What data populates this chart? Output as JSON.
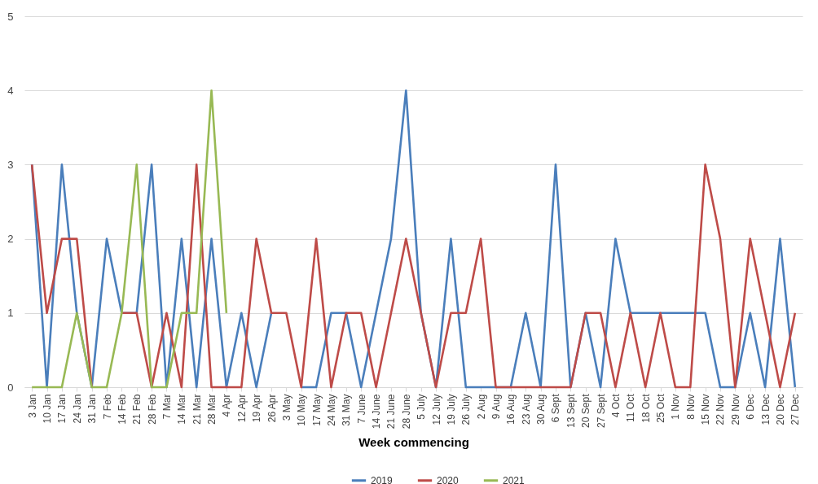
{
  "chart_data": {
    "type": "line",
    "xlabel": "Week commencing",
    "categories": [
      "3 Jan",
      "10 Jan",
      "17 Jan",
      "24 Jan",
      "31 Jan",
      "7 Feb",
      "14 Feb",
      "21 Feb",
      "28 Feb",
      "7 Mar",
      "14 Mar",
      "21 Mar",
      "28 Mar",
      "4 Apr",
      "12 Apr",
      "19 Apr",
      "26 Apr",
      "3 May",
      "10 May",
      "17 May",
      "24 May",
      "31 May",
      "7 June",
      "14 June",
      "21 June",
      "28 June",
      "5 July",
      "12 July",
      "19 July",
      "26 July",
      "2 Aug",
      "9 Aug",
      "16 Aug",
      "23 Aug",
      "30 Aug",
      "6 Sept",
      "13 Sept",
      "20 Sept",
      "27 Sept",
      "4 Oct",
      "11 Oct",
      "18 Oct",
      "25 Oct",
      "1 Nov",
      "8 Nov",
      "15 Nov",
      "22 Nov",
      "29 Nov",
      "6 Dec",
      "13 Dec",
      "20 Dec",
      "27 Dec"
    ],
    "series": [
      {
        "name": "2019",
        "color": "#4a7ebb",
        "values": [
          3,
          0,
          3,
          1,
          0,
          2,
          1,
          1,
          3,
          0,
          2,
          0,
          2,
          0,
          1,
          0,
          1,
          null,
          0,
          0,
          1,
          1,
          0,
          1,
          2,
          4,
          1,
          0,
          2,
          0,
          0,
          0,
          0,
          1,
          0,
          3,
          0,
          1,
          0,
          2,
          1,
          1,
          1,
          1,
          1,
          1,
          0,
          0,
          1,
          0,
          2,
          0
        ]
      },
      {
        "name": "2020",
        "color": "#be4b48",
        "values": [
          3,
          1,
          2,
          2,
          0,
          null,
          1,
          1,
          0,
          1,
          0,
          3,
          0,
          0,
          0,
          2,
          1,
          1,
          0,
          2,
          0,
          1,
          1,
          0,
          1,
          2,
          1,
          0,
          1,
          1,
          2,
          0,
          0,
          0,
          0,
          0,
          0,
          1,
          1,
          0,
          1,
          0,
          1,
          0,
          0,
          3,
          2,
          0,
          2,
          1,
          0,
          1
        ]
      },
      {
        "name": "2021",
        "color": "#98b954",
        "values": [
          0,
          0,
          0,
          1,
          0,
          0,
          1,
          3,
          0,
          0,
          1,
          1,
          4,
          1,
          null,
          null,
          null,
          null,
          null,
          null,
          null,
          null,
          null,
          null,
          null,
          null,
          null,
          null,
          null,
          null,
          null,
          null,
          null,
          null,
          null,
          null,
          null,
          null,
          null,
          null,
          null,
          null,
          null,
          null,
          null,
          null,
          null,
          null,
          null,
          null,
          null,
          null
        ]
      }
    ],
    "ylim": [
      0,
      5
    ],
    "yticks": [
      0,
      1,
      2,
      3,
      4,
      5
    ],
    "grid": "y",
    "legend": "bottom",
    "marker": "none",
    "line_style": "solid"
  }
}
